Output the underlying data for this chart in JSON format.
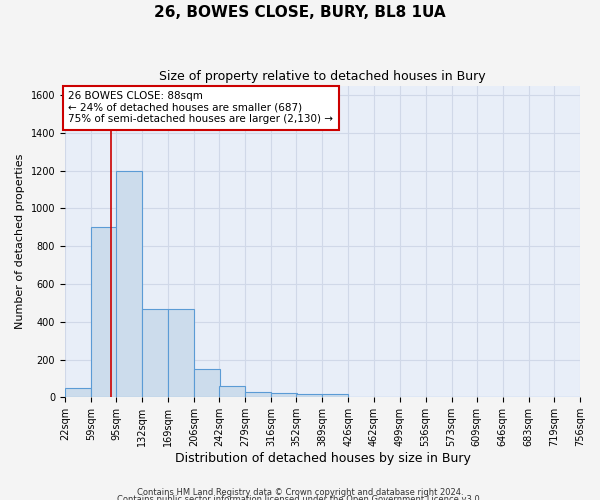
{
  "title": "26, BOWES CLOSE, BURY, BL8 1UA",
  "subtitle": "Size of property relative to detached houses in Bury",
  "xlabel": "Distribution of detached houses by size in Bury",
  "ylabel": "Number of detached properties",
  "bin_edges": [
    22,
    59,
    95,
    132,
    169,
    206,
    242,
    279,
    316,
    352,
    389,
    426,
    462,
    499,
    536,
    573,
    609,
    646,
    683,
    719,
    756
  ],
  "bar_heights": [
    50,
    900,
    1200,
    470,
    470,
    150,
    60,
    30,
    25,
    20,
    20,
    0,
    0,
    0,
    0,
    0,
    0,
    0,
    0,
    0
  ],
  "bar_color": "#ccdcec",
  "bar_edge_color": "#5b9bd5",
  "property_size": 88,
  "property_line_color": "#cc0000",
  "ylim": [
    0,
    1650
  ],
  "yticks": [
    0,
    200,
    400,
    600,
    800,
    1000,
    1200,
    1400,
    1600
  ],
  "annotation_text": "26 BOWES CLOSE: 88sqm\n← 24% of detached houses are smaller (687)\n75% of semi-detached houses are larger (2,130) →",
  "annotation_box_color": "#ffffff",
  "annotation_box_edgecolor": "#cc0000",
  "footnote1": "Contains HM Land Registry data © Crown copyright and database right 2024.",
  "footnote2": "Contains public sector information licensed under the Open Government Licence v3.0.",
  "background_color": "#e8eef8",
  "grid_color": "#d0d8e8",
  "title_fontsize": 11,
  "subtitle_fontsize": 9,
  "tick_label_fontsize": 7,
  "ylabel_fontsize": 8,
  "xlabel_fontsize": 9
}
